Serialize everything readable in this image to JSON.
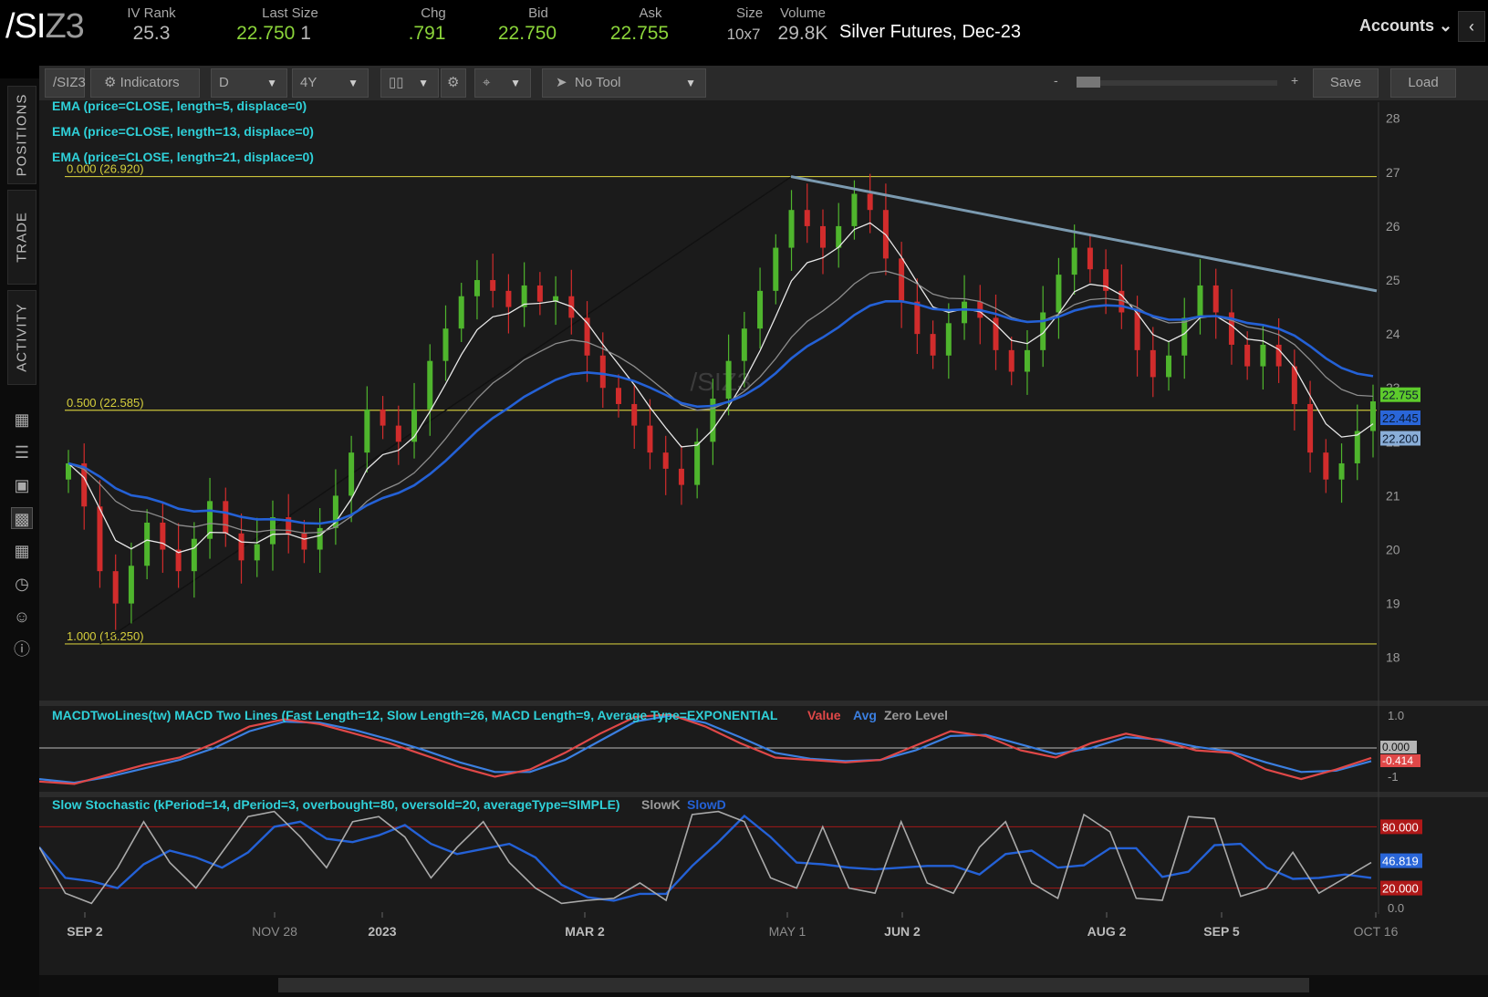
{
  "header": {
    "symbol_main": "/SI",
    "symbol_suffix": "Z3",
    "description": "Silver Futures, Dec-23",
    "accounts_label": "Accounts",
    "stats": [
      {
        "label": "IV Rank",
        "value": "25.3",
        "color": "grey"
      },
      {
        "label": "Last Size",
        "value": "22.750",
        "extra": "1",
        "color": "green"
      },
      {
        "label": "Chg",
        "value": ".791",
        "color": "green"
      },
      {
        "label": "Bid",
        "value": "22.750",
        "color": "green"
      },
      {
        "label": "Ask",
        "value": "22.755",
        "color": "green"
      },
      {
        "label": "Size",
        "value": "10x7",
        "color": "grey"
      },
      {
        "label": "Volume",
        "value": "29.8K",
        "color": "grey"
      }
    ]
  },
  "sidebar": {
    "tabs": [
      "POSITIONS",
      "TRADE",
      "ACTIVITY"
    ],
    "icons": [
      "monitor-icon",
      "list-icon",
      "tv-icon",
      "chart-icon",
      "grid-icon",
      "clock-icon",
      "people-icon",
      "help-icon"
    ],
    "active_icon": "chart-icon"
  },
  "toolbar": {
    "symbol": "/SIZ3",
    "indicators_label": "Indicators",
    "aggregation": "D",
    "timeframe": "4Y",
    "tool": "No Tool",
    "zoom_minus": "-",
    "zoom_plus": "+",
    "save_label": "Save",
    "load_label": "Load"
  },
  "chart_data": {
    "type": "candlestick",
    "watermark": "/SIZ3",
    "ylim": [
      17.2,
      28.3
    ],
    "y_ticks": [
      "28",
      "27",
      "26",
      "25",
      "24",
      "23",
      "22",
      "21",
      "20",
      "19",
      "18"
    ],
    "x_ticks": [
      "SEP 2",
      "NOV 28",
      "2023",
      "MAR 2",
      "MAY 1",
      "JUN 2",
      "AUG 2",
      "SEP 5",
      "OCT 16"
    ],
    "studies": [
      "EMA (price=CLOSE, length=5, displace=0)",
      "EMA (price=CLOSE, length=13, displace=0)",
      "EMA (price=CLOSE, length=21, displace=0)"
    ],
    "fib_levels": [
      {
        "label": "0.000 (26.920)",
        "value": 26.92
      },
      {
        "label": "0.500 (22.585)",
        "value": 22.585
      },
      {
        "label": "1.000 (18.250)",
        "value": 18.25
      }
    ],
    "trendline": {
      "from": {
        "x": "MAY 1",
        "y": 26.92
      },
      "to": {
        "x": "OCT 16",
        "y": 24.8
      }
    },
    "price_labels": [
      {
        "value": "22.755",
        "color": "#5ecb2c"
      },
      {
        "value": "22.445",
        "color": "#2a66d8"
      },
      {
        "value": "22.200",
        "color": "#8aaed8"
      }
    ],
    "closes": [
      21.6,
      20.8,
      19.6,
      19.0,
      19.7,
      20.5,
      20.0,
      19.6,
      20.2,
      20.9,
      20.3,
      19.8,
      20.1,
      20.6,
      20.3,
      20.0,
      20.4,
      21.0,
      21.8,
      22.6,
      22.3,
      22.0,
      22.6,
      23.5,
      24.1,
      24.7,
      25.0,
      24.8,
      24.5,
      24.9,
      24.6,
      24.7,
      24.3,
      23.6,
      23.0,
      22.7,
      22.3,
      21.8,
      21.5,
      21.2,
      22.0,
      22.8,
      23.5,
      24.1,
      24.8,
      25.6,
      26.3,
      26.0,
      25.6,
      26.0,
      26.6,
      26.3,
      25.4,
      24.6,
      24.0,
      23.6,
      24.2,
      24.6,
      24.3,
      23.7,
      23.3,
      23.7,
      24.4,
      25.1,
      25.6,
      25.2,
      24.8,
      24.4,
      23.7,
      23.2,
      23.6,
      24.3,
      24.9,
      24.4,
      23.8,
      23.4,
      23.8,
      23.4,
      22.7,
      21.8,
      21.3,
      21.6,
      22.2,
      22.75
    ],
    "macd": {
      "title": "MACDTwoLines(tw) MACD Two Lines (Fast Length=12, Slow Length=26, MACD Length=9, Average Type=EXPONENTIAL",
      "legend": [
        "Value",
        "Avg",
        "Zero Level"
      ],
      "y_ticks": [
        "1.0",
        "-1"
      ],
      "labels": [
        "0.000",
        "-0.414"
      ],
      "value": [
        -1.4,
        -1.5,
        -1.1,
        -0.7,
        -0.4,
        0.2,
        0.9,
        1.2,
        1.0,
        0.6,
        0.2,
        -0.3,
        -0.8,
        -1.2,
        -0.9,
        -0.2,
        0.6,
        1.3,
        1.4,
        0.9,
        0.2,
        -0.4,
        -0.5,
        -0.6,
        -0.5,
        0.1,
        0.7,
        0.5,
        -0.1,
        -0.4,
        0.2,
        0.6,
        0.3,
        -0.1,
        -0.2,
        -0.9,
        -1.3,
        -0.9,
        -0.414
      ],
      "avg": [
        -1.3,
        -1.45,
        -1.2,
        -0.85,
        -0.5,
        0.0,
        0.7,
        1.1,
        1.05,
        0.75,
        0.35,
        -0.1,
        -0.6,
        -1.0,
        -1.0,
        -0.5,
        0.3,
        1.1,
        1.35,
        1.05,
        0.45,
        -0.2,
        -0.45,
        -0.55,
        -0.5,
        -0.1,
        0.5,
        0.55,
        0.15,
        -0.25,
        0.0,
        0.45,
        0.35,
        0.05,
        -0.15,
        -0.6,
        -1.0,
        -0.95,
        -0.55
      ]
    },
    "stochastic": {
      "title": "Slow Stochastic (kPeriod=14, dPeriod=3, overbought=80, oversold=20, averageType=SIMPLE)",
      "legend": [
        "SlowK",
        "SlowD"
      ],
      "y_ticks": [
        "0.0"
      ],
      "labels": [
        {
          "value": "80.000",
          "color": "#b01818"
        },
        {
          "value": "46.819",
          "color": "#2a66d8"
        },
        {
          "value": "20.000",
          "color": "#b01818"
        }
      ],
      "slowk": [
        60,
        15,
        5,
        40,
        85,
        45,
        20,
        55,
        90,
        95,
        70,
        40,
        85,
        90,
        70,
        30,
        60,
        85,
        45,
        20,
        5,
        8,
        10,
        25,
        8,
        92,
        95,
        85,
        30,
        20,
        80,
        20,
        15,
        85,
        25,
        15,
        60,
        85,
        25,
        10,
        92,
        75,
        10,
        8,
        90,
        88,
        12,
        20,
        55,
        15,
        30,
        45
      ]
    }
  }
}
